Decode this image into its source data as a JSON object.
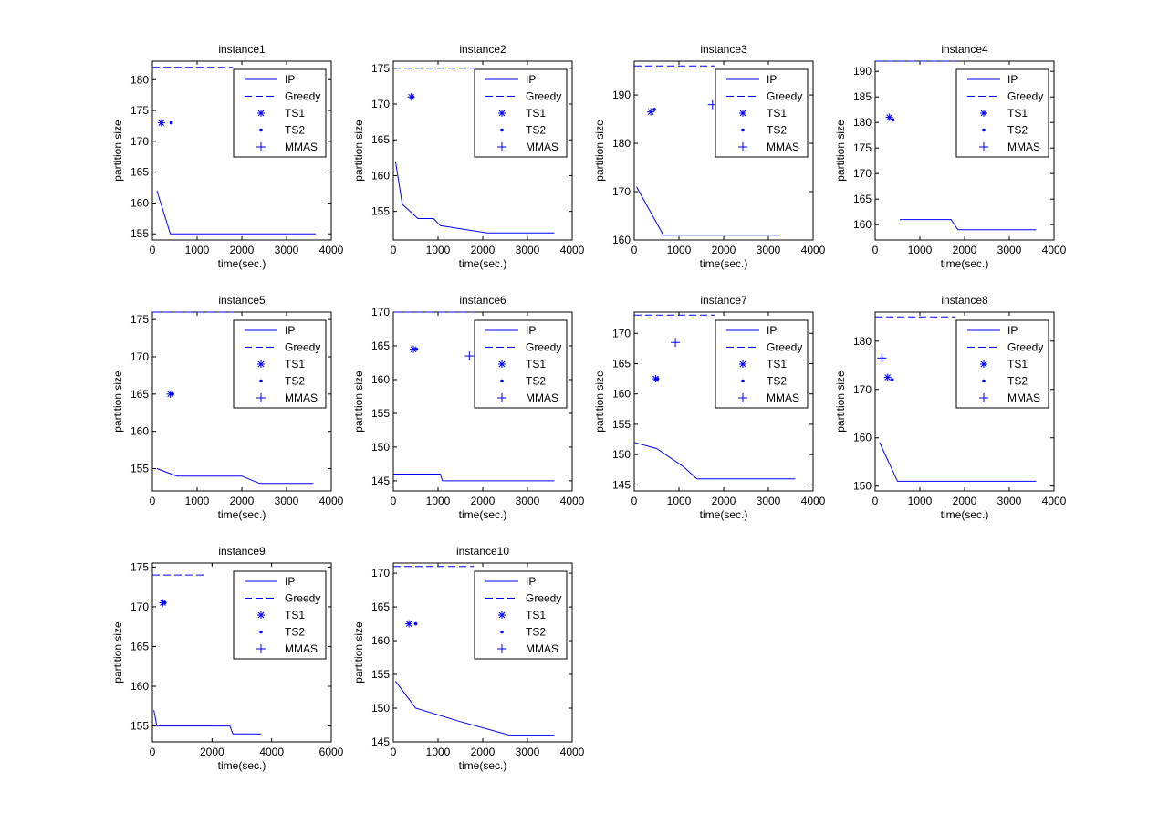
{
  "figure_title": "",
  "chart_data": [
    {
      "type": "line",
      "title": "instance1",
      "xlabel": "time(sec.)",
      "ylabel": "partition size",
      "xlim": [
        0,
        4000
      ],
      "ylim": [
        154,
        183
      ],
      "xticks": [
        0,
        1000,
        2000,
        3000,
        4000
      ],
      "yticks": [
        155,
        160,
        165,
        170,
        175,
        180
      ],
      "series": [
        {
          "name": "IP",
          "style": "solid",
          "x": [
            100,
            400,
            3650
          ],
          "y": [
            162,
            155,
            155
          ]
        },
        {
          "name": "Greedy",
          "style": "dashed",
          "x": [
            0,
            1800
          ],
          "y": [
            182,
            182
          ]
        },
        {
          "name": "TS1",
          "style": "asterisk",
          "x": [
            200
          ],
          "y": [
            173
          ]
        },
        {
          "name": "TS2",
          "style": "dot",
          "x": [
            420
          ],
          "y": [
            173
          ]
        },
        {
          "name": "MMAS",
          "style": "plus",
          "x": [],
          "y": []
        }
      ]
    },
    {
      "type": "line",
      "title": "instance2",
      "xlabel": "time(sec.)",
      "ylabel": "partition size",
      "xlim": [
        0,
        4000
      ],
      "ylim": [
        151,
        176
      ],
      "xticks": [
        0,
        1000,
        2000,
        3000,
        4000
      ],
      "yticks": [
        155,
        160,
        165,
        170,
        175
      ],
      "series": [
        {
          "name": "IP",
          "style": "solid",
          "x": [
            50,
            200,
            550,
            900,
            1050,
            2100,
            3600
          ],
          "y": [
            162,
            156,
            154,
            154,
            153,
            152,
            152
          ]
        },
        {
          "name": "Greedy",
          "style": "dashed",
          "x": [
            0,
            1800
          ],
          "y": [
            175,
            175
          ]
        },
        {
          "name": "TS1",
          "style": "asterisk",
          "x": [
            400
          ],
          "y": [
            171
          ]
        },
        {
          "name": "TS2",
          "style": "dot",
          "x": [
            430
          ],
          "y": [
            171
          ]
        },
        {
          "name": "MMAS",
          "style": "plus",
          "x": [],
          "y": []
        }
      ]
    },
    {
      "type": "line",
      "title": "instance3",
      "xlabel": "time(sec.)",
      "ylabel": "partition size",
      "xlim": [
        0,
        4000
      ],
      "ylim": [
        160,
        197
      ],
      "xticks": [
        0,
        1000,
        2000,
        3000,
        4000
      ],
      "yticks": [
        160,
        170,
        180,
        190
      ],
      "series": [
        {
          "name": "IP",
          "style": "solid",
          "x": [
            50,
            650,
            3250
          ],
          "y": [
            171,
            161,
            161
          ]
        },
        {
          "name": "Greedy",
          "style": "dashed",
          "x": [
            0,
            1800
          ],
          "y": [
            196,
            196
          ]
        },
        {
          "name": "TS1",
          "style": "asterisk",
          "x": [
            370
          ],
          "y": [
            186.5
          ]
        },
        {
          "name": "TS2",
          "style": "dot",
          "x": [
            450
          ],
          "y": [
            187
          ]
        },
        {
          "name": "MMAS",
          "style": "plus",
          "x": [
            1750
          ],
          "y": [
            188
          ]
        }
      ]
    },
    {
      "type": "line",
      "title": "instance4",
      "xlabel": "time(sec.)",
      "ylabel": "partition size",
      "xlim": [
        0,
        4000
      ],
      "ylim": [
        157,
        192
      ],
      "xticks": [
        0,
        1000,
        2000,
        3000,
        4000
      ],
      "yticks": [
        160,
        165,
        170,
        175,
        180,
        185,
        190
      ],
      "series": [
        {
          "name": "IP",
          "style": "solid",
          "x": [
            550,
            1700,
            1850,
            3600
          ],
          "y": [
            161,
            161,
            159,
            159
          ]
        },
        {
          "name": "Greedy",
          "style": "dashed",
          "x": [
            0,
            1800
          ],
          "y": [
            192,
            192
          ]
        },
        {
          "name": "TS1",
          "style": "asterisk",
          "x": [
            320
          ],
          "y": [
            181
          ]
        },
        {
          "name": "TS2",
          "style": "dot",
          "x": [
            400
          ],
          "y": [
            180.5
          ]
        },
        {
          "name": "MMAS",
          "style": "plus",
          "x": [],
          "y": []
        }
      ]
    },
    {
      "type": "line",
      "title": "instance5",
      "xlabel": "time(sec.)",
      "ylabel": "partition size",
      "xlim": [
        0,
        4000
      ],
      "ylim": [
        152,
        176
      ],
      "xticks": [
        0,
        1000,
        2000,
        3000,
        4000
      ],
      "yticks": [
        155,
        160,
        165,
        170,
        175
      ],
      "series": [
        {
          "name": "IP",
          "style": "solid",
          "x": [
            100,
            550,
            2000,
            2400,
            3600
          ],
          "y": [
            155,
            154,
            154,
            153,
            153
          ]
        },
        {
          "name": "Greedy",
          "style": "dashed",
          "x": [
            0,
            1800
          ],
          "y": [
            176,
            176
          ]
        },
        {
          "name": "TS1",
          "style": "asterisk",
          "x": [
            400
          ],
          "y": [
            165
          ]
        },
        {
          "name": "TS2",
          "style": "dot",
          "x": [
            450
          ],
          "y": [
            165
          ]
        },
        {
          "name": "MMAS",
          "style": "plus",
          "x": [],
          "y": []
        }
      ]
    },
    {
      "type": "line",
      "title": "instance6",
      "xlabel": "time(sec.)",
      "ylabel": "partition size",
      "xlim": [
        0,
        4000
      ],
      "ylim": [
        143.5,
        170
      ],
      "xticks": [
        0,
        1000,
        2000,
        3000,
        4000
      ],
      "yticks": [
        145,
        150,
        155,
        160,
        165,
        170
      ],
      "series": [
        {
          "name": "IP",
          "style": "solid",
          "x": [
            0,
            1050,
            1100,
            3600
          ],
          "y": [
            146,
            146,
            145,
            145
          ]
        },
        {
          "name": "Greedy",
          "style": "dashed",
          "x": [
            0,
            1800
          ],
          "y": [
            170,
            170
          ]
        },
        {
          "name": "TS1",
          "style": "asterisk",
          "x": [
            450
          ],
          "y": [
            164.5
          ]
        },
        {
          "name": "TS2",
          "style": "dot",
          "x": [
            520
          ],
          "y": [
            164.5
          ]
        },
        {
          "name": "MMAS",
          "style": "plus",
          "x": [
            1700
          ],
          "y": [
            163.5
          ]
        }
      ]
    },
    {
      "type": "line",
      "title": "instance7",
      "xlabel": "time(sec.)",
      "ylabel": "partition size",
      "xlim": [
        0,
        4000
      ],
      "ylim": [
        144,
        173.5
      ],
      "xticks": [
        0,
        1000,
        2000,
        3000,
        4000
      ],
      "yticks": [
        145,
        150,
        155,
        160,
        165,
        170
      ],
      "series": [
        {
          "name": "IP",
          "style": "solid",
          "x": [
            0,
            500,
            1100,
            1400,
            3600
          ],
          "y": [
            152,
            151,
            148,
            146,
            146
          ]
        },
        {
          "name": "Greedy",
          "style": "dashed",
          "x": [
            0,
            1800
          ],
          "y": [
            173,
            173
          ]
        },
        {
          "name": "TS1",
          "style": "asterisk",
          "x": [
            480
          ],
          "y": [
            162.5
          ]
        },
        {
          "name": "TS2",
          "style": "dot",
          "x": [
            520
          ],
          "y": [
            162.5
          ]
        },
        {
          "name": "MMAS",
          "style": "plus",
          "x": [
            920
          ],
          "y": [
            168.5
          ]
        }
      ]
    },
    {
      "type": "line",
      "title": "instance8",
      "xlabel": "time(sec.)",
      "ylabel": "partition size",
      "xlim": [
        0,
        4000
      ],
      "ylim": [
        149,
        186
      ],
      "xticks": [
        0,
        1000,
        2000,
        3000,
        4000
      ],
      "yticks": [
        150,
        160,
        170,
        180
      ],
      "series": [
        {
          "name": "IP",
          "style": "solid",
          "x": [
            100,
            500,
            3600
          ],
          "y": [
            159,
            151,
            151
          ]
        },
        {
          "name": "Greedy",
          "style": "dashed",
          "x": [
            0,
            1800
          ],
          "y": [
            185,
            185
          ]
        },
        {
          "name": "TS1",
          "style": "asterisk",
          "x": [
            280
          ],
          "y": [
            172.5
          ]
        },
        {
          "name": "TS2",
          "style": "dot",
          "x": [
            380
          ],
          "y": [
            172
          ]
        },
        {
          "name": "MMAS",
          "style": "plus",
          "x": [
            150
          ],
          "y": [
            176.5
          ]
        }
      ]
    },
    {
      "type": "line",
      "title": "instance9",
      "xlabel": "time(sec.)",
      "ylabel": "partition size",
      "xlim": [
        0,
        6000
      ],
      "ylim": [
        153,
        175.5
      ],
      "xticks": [
        0,
        2000,
        4000,
        6000
      ],
      "yticks": [
        155,
        160,
        165,
        170,
        175
      ],
      "series": [
        {
          "name": "IP",
          "style": "solid",
          "x": [
            50,
            150,
            2600,
            2700,
            3650
          ],
          "y": [
            157,
            155,
            155,
            154,
            154
          ]
        },
        {
          "name": "Greedy",
          "style": "dashed",
          "x": [
            0,
            1800
          ],
          "y": [
            174,
            174
          ]
        },
        {
          "name": "TS1",
          "style": "asterisk",
          "x": [
            350
          ],
          "y": [
            170.5
          ]
        },
        {
          "name": "TS2",
          "style": "dot",
          "x": [
            420
          ],
          "y": [
            170.5
          ]
        },
        {
          "name": "MMAS",
          "style": "plus",
          "x": [],
          "y": []
        }
      ]
    },
    {
      "type": "line",
      "title": "instance10",
      "xlabel": "time(sec.)",
      "ylabel": "partition size",
      "xlim": [
        0,
        4000
      ],
      "ylim": [
        145,
        171.5
      ],
      "xticks": [
        0,
        1000,
        2000,
        3000,
        4000
      ],
      "yticks": [
        145,
        150,
        155,
        160,
        165,
        170
      ],
      "series": [
        {
          "name": "IP",
          "style": "solid",
          "x": [
            50,
            500,
            1500,
            2600,
            3600
          ],
          "y": [
            154,
            150,
            148,
            146,
            146
          ]
        },
        {
          "name": "Greedy",
          "style": "dashed",
          "x": [
            0,
            1800
          ],
          "y": [
            171,
            171
          ]
        },
        {
          "name": "TS1",
          "style": "asterisk",
          "x": [
            350
          ],
          "y": [
            162.5
          ]
        },
        {
          "name": "TS2",
          "style": "dot",
          "x": [
            500
          ],
          "y": [
            162.5
          ]
        },
        {
          "name": "MMAS",
          "style": "plus",
          "x": [],
          "y": []
        }
      ]
    }
  ],
  "colors": {
    "series": "#0000ff",
    "axes": "#000000",
    "background": "#ffffff"
  }
}
